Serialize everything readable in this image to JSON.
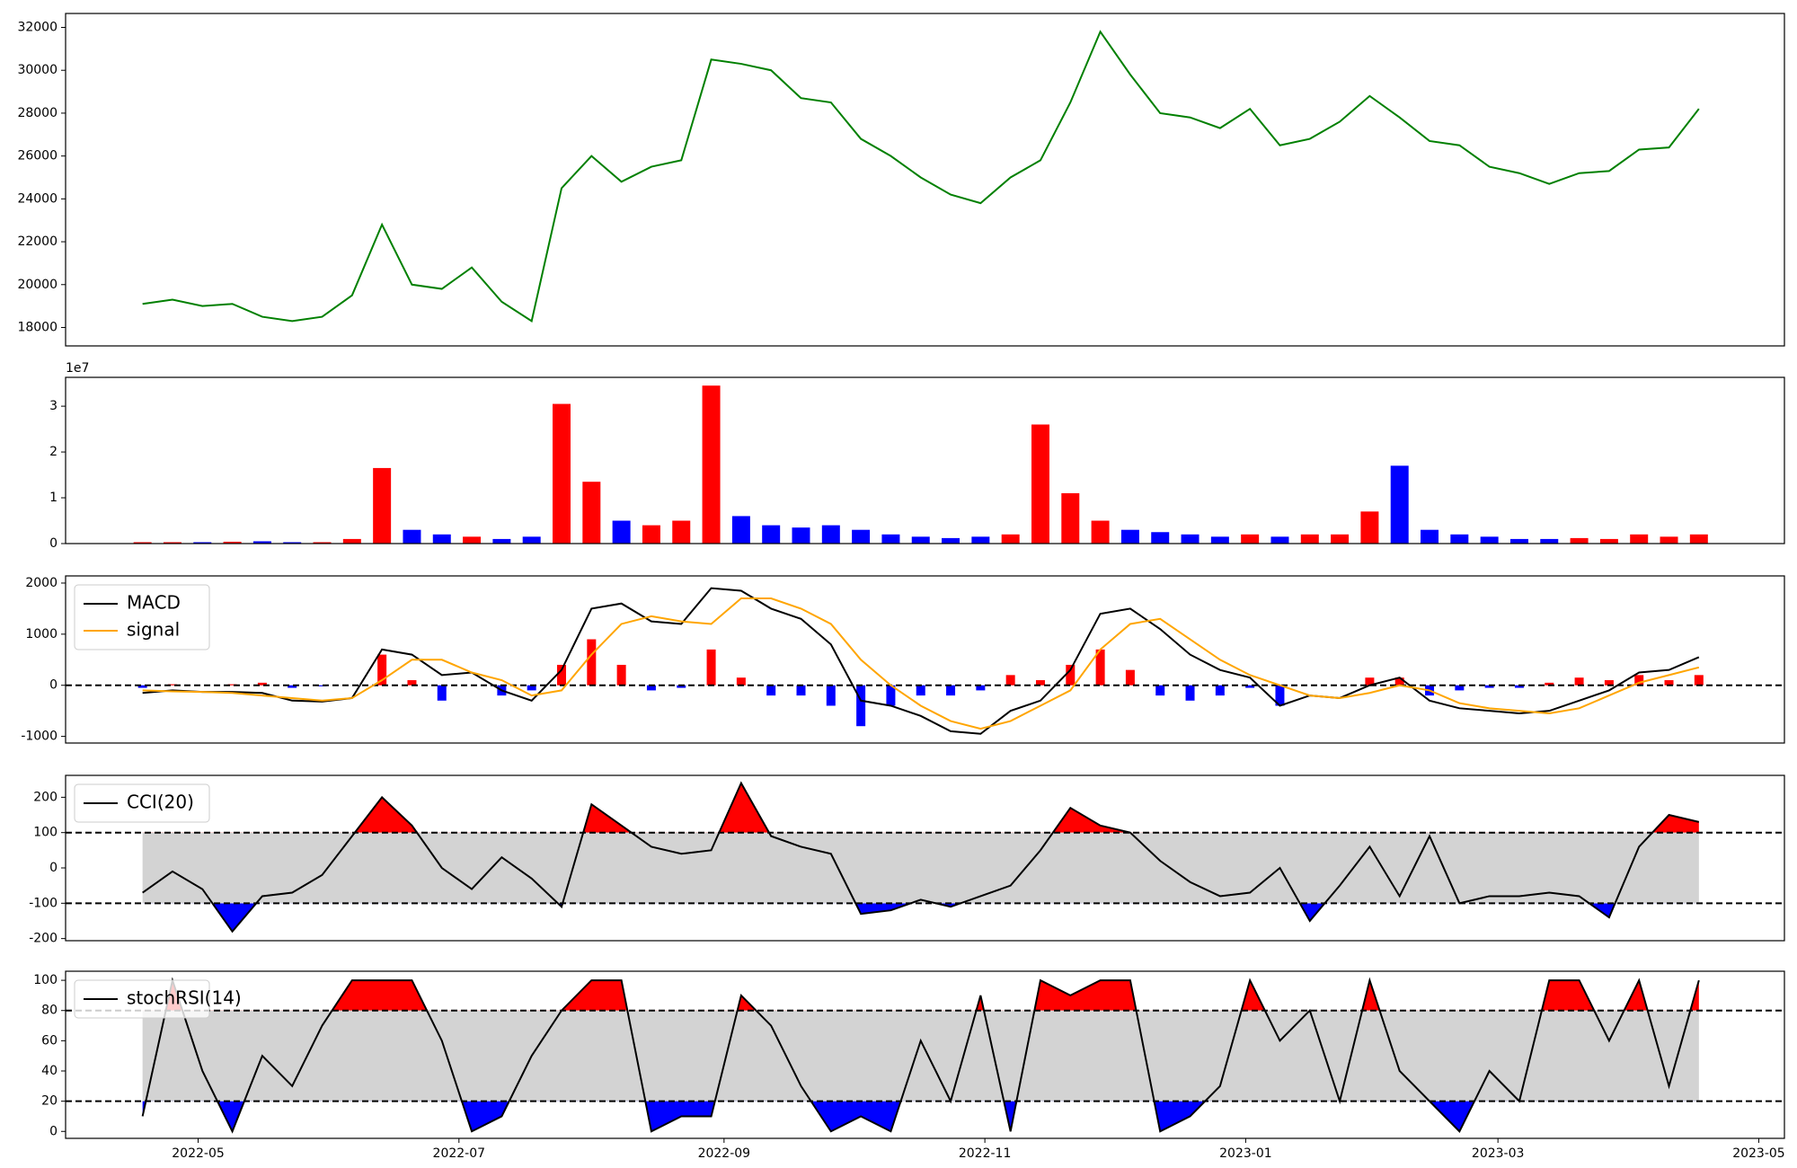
{
  "chart_data": [
    {
      "type": "line",
      "color": "green",
      "x": [
        "2022-04-18",
        "2022-04-25",
        "2022-05-02",
        "2022-05-09",
        "2022-05-16",
        "2022-05-23",
        "2022-05-30",
        "2022-06-06",
        "2022-06-13",
        "2022-06-20",
        "2022-06-27",
        "2022-07-04",
        "2022-07-11",
        "2022-07-18",
        "2022-07-25",
        "2022-08-01",
        "2022-08-08",
        "2022-08-15",
        "2022-08-22",
        "2022-08-29",
        "2022-09-05",
        "2022-09-12",
        "2022-09-19",
        "2022-09-26",
        "2022-10-03",
        "2022-10-10",
        "2022-10-17",
        "2022-10-24",
        "2022-10-31",
        "2022-11-07",
        "2022-11-14",
        "2022-11-21",
        "2022-11-28",
        "2022-12-05",
        "2022-12-12",
        "2022-12-19",
        "2022-12-26",
        "2023-01-02",
        "2023-01-09",
        "2023-01-16",
        "2023-01-23",
        "2023-01-30",
        "2023-02-06",
        "2023-02-13",
        "2023-02-20",
        "2023-02-27",
        "2023-03-06",
        "2023-03-13",
        "2023-03-20",
        "2023-03-27",
        "2023-04-03",
        "2023-04-10",
        "2023-04-17"
      ],
      "values": [
        19100,
        19300,
        19000,
        19100,
        18500,
        18300,
        18500,
        19500,
        22800,
        20000,
        19800,
        20800,
        19200,
        18300,
        24500,
        26000,
        24800,
        25500,
        25800,
        30500,
        30300,
        30000,
        28700,
        28500,
        26800,
        26000,
        25000,
        24200,
        23800,
        25000,
        25800,
        28500,
        31800,
        29800,
        28000,
        27800,
        27300,
        28200,
        26500,
        26800,
        27600,
        28800,
        27800,
        26700,
        26500,
        25500,
        25200,
        24700,
        25200,
        25300,
        26300,
        26400,
        28200
      ],
      "xlim": [
        "2022-03-31",
        "2023-05-07"
      ],
      "ylim": [
        17140,
        32650
      ],
      "yticks": [
        18000,
        20000,
        22000,
        24000,
        26000,
        28000,
        30000,
        32000
      ]
    },
    {
      "type": "bar",
      "offset_label": "1e7",
      "x": [
        "2022-04-18",
        "2022-04-25",
        "2022-05-02",
        "2022-05-09",
        "2022-05-16",
        "2022-05-23",
        "2022-05-30",
        "2022-06-06",
        "2022-06-13",
        "2022-06-20",
        "2022-06-27",
        "2022-07-04",
        "2022-07-11",
        "2022-07-18",
        "2022-07-25",
        "2022-08-01",
        "2022-08-08",
        "2022-08-15",
        "2022-08-22",
        "2022-08-29",
        "2022-09-05",
        "2022-09-12",
        "2022-09-19",
        "2022-09-26",
        "2022-10-03",
        "2022-10-10",
        "2022-10-17",
        "2022-10-24",
        "2022-10-31",
        "2022-11-07",
        "2022-11-14",
        "2022-11-21",
        "2022-11-28",
        "2022-12-05",
        "2022-12-12",
        "2022-12-19",
        "2022-12-26",
        "2023-01-02",
        "2023-01-09",
        "2023-01-16",
        "2023-01-23",
        "2023-01-30",
        "2023-02-06",
        "2023-02-13",
        "2023-02-20",
        "2023-02-27",
        "2023-03-06",
        "2023-03-13",
        "2023-03-20",
        "2023-03-27",
        "2023-04-03",
        "2023-04-10",
        "2023-04-17"
      ],
      "values": [
        0.03,
        0.03,
        0.03,
        0.04,
        0.05,
        0.03,
        0.03,
        0.1,
        1.65,
        0.3,
        0.2,
        0.15,
        0.1,
        0.15,
        3.05,
        1.35,
        0.5,
        0.4,
        0.5,
        3.45,
        0.6,
        0.4,
        0.35,
        0.4,
        0.3,
        0.2,
        0.15,
        0.12,
        0.15,
        0.2,
        2.6,
        1.1,
        0.5,
        0.3,
        0.25,
        0.2,
        0.15,
        0.2,
        0.15,
        0.2,
        0.2,
        0.7,
        1.7,
        0.3,
        0.2,
        0.15,
        0.1,
        0.1,
        0.12,
        0.1,
        0.2,
        0.15,
        0.2
      ],
      "colors": [
        "red",
        "red",
        "blue",
        "red",
        "blue",
        "blue",
        "red",
        "red",
        "red",
        "blue",
        "blue",
        "red",
        "blue",
        "blue",
        "red",
        "red",
        "blue",
        "red",
        "red",
        "red",
        "blue",
        "blue",
        "blue",
        "blue",
        "blue",
        "blue",
        "blue",
        "blue",
        "blue",
        "red",
        "red",
        "red",
        "red",
        "blue",
        "blue",
        "blue",
        "blue",
        "red",
        "blue",
        "red",
        "red",
        "red",
        "blue",
        "blue",
        "blue",
        "blue",
        "blue",
        "blue",
        "red",
        "red",
        "red",
        "red",
        "red"
      ],
      "xlim": [
        "2022-03-31",
        "2023-05-07"
      ],
      "ylim": [
        0,
        3.63
      ],
      "yticks": [
        0,
        1,
        2,
        3
      ]
    },
    {
      "type": "line",
      "legend": "upper left",
      "hlines": [
        0
      ],
      "x": [
        "2022-04-18",
        "2022-04-25",
        "2022-05-02",
        "2022-05-09",
        "2022-05-16",
        "2022-05-23",
        "2022-05-30",
        "2022-06-06",
        "2022-06-13",
        "2022-06-20",
        "2022-06-27",
        "2022-07-04",
        "2022-07-11",
        "2022-07-18",
        "2022-07-25",
        "2022-08-01",
        "2022-08-08",
        "2022-08-15",
        "2022-08-22",
        "2022-08-29",
        "2022-09-05",
        "2022-09-12",
        "2022-09-19",
        "2022-09-26",
        "2022-10-03",
        "2022-10-10",
        "2022-10-17",
        "2022-10-24",
        "2022-10-31",
        "2022-11-07",
        "2022-11-14",
        "2022-11-21",
        "2022-11-28",
        "2022-12-05",
        "2022-12-12",
        "2022-12-19",
        "2022-12-26",
        "2023-01-02",
        "2023-01-09",
        "2023-01-16",
        "2023-01-23",
        "2023-01-30",
        "2023-02-06",
        "2023-02-13",
        "2023-02-20",
        "2023-02-27",
        "2023-03-06",
        "2023-03-13",
        "2023-03-20",
        "2023-03-27",
        "2023-04-03",
        "2023-04-10",
        "2023-04-17"
      ],
      "series": [
        {
          "name": "MACD",
          "color": "black",
          "values": [
            -150,
            -100,
            -130,
            -130,
            -150,
            -300,
            -320,
            -250,
            700,
            600,
            200,
            250,
            -100,
            -300,
            300,
            1500,
            1600,
            1250,
            1200,
            1900,
            1850,
            1500,
            1300,
            800,
            -300,
            -400,
            -600,
            -900,
            -950,
            -500,
            -300,
            300,
            1400,
            1500,
            1100,
            600,
            300,
            150,
            -400,
            -200,
            -250,
            0,
            150,
            -300,
            -450,
            -500,
            -550,
            -500,
            -300,
            -100,
            250,
            300,
            550
          ]
        },
        {
          "name": "signal",
          "color": "orange",
          "values": [
            -100,
            -120,
            -130,
            -150,
            -200,
            -250,
            -300,
            -250,
            100,
            500,
            500,
            250,
            100,
            -200,
            -100,
            600,
            1200,
            1350,
            1250,
            1200,
            1700,
            1700,
            1500,
            1200,
            500,
            0,
            -400,
            -700,
            -850,
            -700,
            -400,
            -100,
            700,
            1200,
            1300,
            900,
            500,
            200,
            0,
            -200,
            -250,
            -150,
            0,
            -100,
            -350,
            -450,
            -500,
            -550,
            -450,
            -200,
            50,
            200,
            350
          ]
        }
      ],
      "histogram": {
        "pos_color": "red",
        "neg_color": "blue",
        "values": [
          -50,
          20,
          0,
          20,
          50,
          -50,
          -20,
          0,
          600,
          100,
          -300,
          0,
          -200,
          -100,
          400,
          900,
          400,
          -100,
          -50,
          700,
          150,
          -200,
          -200,
          -400,
          -800,
          -400,
          -200,
          -200,
          -100,
          200,
          100,
          400,
          700,
          300,
          -200,
          -300,
          -200,
          -50,
          -400,
          0,
          0,
          150,
          150,
          -200,
          -100,
          -50,
          -50,
          50,
          150,
          100,
          200,
          100,
          200
        ]
      },
      "xlim": [
        "2022-03-31",
        "2023-05-07"
      ],
      "ylim": [
        -1130,
        2140
      ],
      "yticks": [
        -1000,
        0,
        1000,
        2000
      ]
    },
    {
      "type": "line",
      "legend": "upper left",
      "thresholds": [
        -100,
        100
      ],
      "band_color": "#d3d3d3",
      "above_color": "red",
      "below_color": "blue",
      "x": [
        "2022-04-18",
        "2022-04-25",
        "2022-05-02",
        "2022-05-09",
        "2022-05-16",
        "2022-05-23",
        "2022-05-30",
        "2022-06-06",
        "2022-06-13",
        "2022-06-20",
        "2022-06-27",
        "2022-07-04",
        "2022-07-11",
        "2022-07-18",
        "2022-07-25",
        "2022-08-01",
        "2022-08-08",
        "2022-08-15",
        "2022-08-22",
        "2022-08-29",
        "2022-09-05",
        "2022-09-12",
        "2022-09-19",
        "2022-09-26",
        "2022-10-03",
        "2022-10-10",
        "2022-10-17",
        "2022-10-24",
        "2022-10-31",
        "2022-11-07",
        "2022-11-14",
        "2022-11-21",
        "2022-11-28",
        "2022-12-05",
        "2022-12-12",
        "2022-12-19",
        "2022-12-26",
        "2023-01-02",
        "2023-01-09",
        "2023-01-16",
        "2023-01-23",
        "2023-01-30",
        "2023-02-06",
        "2023-02-13",
        "2023-02-20",
        "2023-02-27",
        "2023-03-06",
        "2023-03-13",
        "2023-03-20",
        "2023-03-27",
        "2023-04-03",
        "2023-04-10",
        "2023-04-17"
      ],
      "series": [
        {
          "name": "CCI(20)",
          "color": "black",
          "values": [
            -70,
            -10,
            -60,
            -180,
            -80,
            -70,
            -20,
            90,
            200,
            120,
            0,
            -60,
            30,
            -30,
            -110,
            180,
            120,
            60,
            40,
            50,
            240,
            90,
            60,
            40,
            -130,
            -120,
            -90,
            -110,
            -80,
            -50,
            50,
            170,
            120,
            100,
            20,
            -40,
            -80,
            -70,
            0,
            -150,
            -50,
            60,
            -80,
            90,
            -100,
            -80,
            -80,
            -70,
            -80,
            -140,
            60,
            150,
            130
          ]
        }
      ],
      "xlim": [
        "2022-03-31",
        "2023-05-07"
      ],
      "ylim": [
        -206,
        262
      ],
      "yticks": [
        -200,
        -100,
        0,
        100,
        200
      ]
    },
    {
      "type": "line",
      "legend": "upper left",
      "thresholds": [
        20,
        80
      ],
      "band_color": "#d3d3d3",
      "above_color": "red",
      "below_color": "blue",
      "x": [
        "2022-04-18",
        "2022-04-25",
        "2022-05-02",
        "2022-05-09",
        "2022-05-16",
        "2022-05-23",
        "2022-05-30",
        "2022-06-06",
        "2022-06-13",
        "2022-06-20",
        "2022-06-27",
        "2022-07-04",
        "2022-07-11",
        "2022-07-18",
        "2022-07-25",
        "2022-08-01",
        "2022-08-08",
        "2022-08-15",
        "2022-08-22",
        "2022-08-29",
        "2022-09-05",
        "2022-09-12",
        "2022-09-19",
        "2022-09-26",
        "2022-10-03",
        "2022-10-10",
        "2022-10-17",
        "2022-10-24",
        "2022-10-31",
        "2022-11-07",
        "2022-11-14",
        "2022-11-21",
        "2022-11-28",
        "2022-12-05",
        "2022-12-12",
        "2022-12-19",
        "2022-12-26",
        "2023-01-02",
        "2023-01-09",
        "2023-01-16",
        "2023-01-23",
        "2023-01-30",
        "2023-02-06",
        "2023-02-13",
        "2023-02-20",
        "2023-02-27",
        "2023-03-06",
        "2023-03-13",
        "2023-03-20",
        "2023-03-27",
        "2023-04-03",
        "2023-04-10",
        "2023-04-17"
      ],
      "series": [
        {
          "name": "stochRSI(14)",
          "color": "black",
          "values": [
            10,
            100,
            40,
            0,
            50,
            30,
            70,
            100,
            100,
            100,
            60,
            0,
            10,
            50,
            80,
            100,
            100,
            0,
            10,
            10,
            90,
            70,
            30,
            0,
            10,
            0,
            60,
            20,
            90,
            0,
            100,
            90,
            100,
            100,
            0,
            10,
            30,
            100,
            60,
            80,
            20,
            100,
            40,
            20,
            0,
            40,
            20,
            100,
            100,
            60,
            100,
            30,
            100
          ]
        }
      ],
      "xlim": [
        "2022-03-31",
        "2023-05-07"
      ],
      "ylim": [
        -4.6,
        106
      ],
      "yticks": [
        0,
        20,
        40,
        60,
        80,
        100
      ],
      "xticks": [
        {
          "value": "2022-05-01",
          "label": "2022-05"
        },
        {
          "value": "2022-07-01",
          "label": "2022-07"
        },
        {
          "value": "2022-09-01",
          "label": "2022-09"
        },
        {
          "value": "2022-11-01",
          "label": "2022-11"
        },
        {
          "value": "2023-01-01",
          "label": "2023-01"
        },
        {
          "value": "2023-03-01",
          "label": "2023-03"
        },
        {
          "value": "2023-05-01",
          "label": "2023-05"
        }
      ]
    }
  ]
}
